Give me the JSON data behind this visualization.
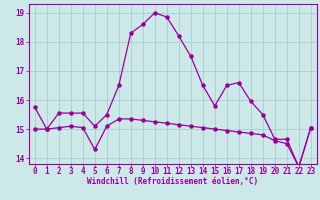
{
  "x": [
    0,
    1,
    2,
    3,
    4,
    5,
    6,
    7,
    8,
    9,
    10,
    11,
    12,
    13,
    14,
    15,
    16,
    17,
    18,
    19,
    20,
    21,
    22,
    23
  ],
  "line1": [
    15.75,
    15.0,
    15.55,
    15.55,
    15.55,
    15.1,
    15.5,
    16.5,
    18.3,
    18.6,
    19.0,
    18.85,
    18.2,
    17.5,
    16.5,
    15.8,
    16.5,
    16.6,
    15.95,
    15.5,
    14.65,
    14.65,
    13.7,
    15.05
  ],
  "line2": [
    15.0,
    15.0,
    15.05,
    15.1,
    15.05,
    14.3,
    15.1,
    15.35,
    15.35,
    15.3,
    15.25,
    15.2,
    15.15,
    15.1,
    15.05,
    15.0,
    14.95,
    14.9,
    14.85,
    14.8,
    14.6,
    14.5,
    13.7,
    15.05
  ],
  "color": "#990099",
  "bg_color": "#cce8e8",
  "grid_color": "#aacccc",
  "xlabel": "Windchill (Refroidissement éolien,°C)",
  "ylim": [
    13.8,
    19.3
  ],
  "xlim": [
    -0.5,
    23.5
  ],
  "yticks": [
    14,
    15,
    16,
    17,
    18,
    19
  ],
  "xticks": [
    0,
    1,
    2,
    3,
    4,
    5,
    6,
    7,
    8,
    9,
    10,
    11,
    12,
    13,
    14,
    15,
    16,
    17,
    18,
    19,
    20,
    21,
    22,
    23
  ],
  "xlabel_fontsize": 5.5,
  "tick_fontsize": 5.5,
  "linewidth": 0.9,
  "markersize": 2.2
}
